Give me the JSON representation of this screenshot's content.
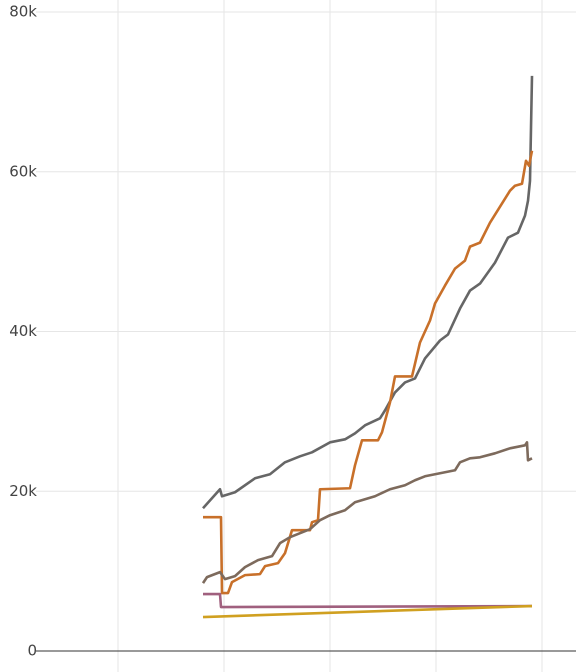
{
  "chart_data": {
    "type": "line",
    "xlim": [
      0,
      536
    ],
    "xticks": [
      78,
      184,
      290,
      396,
      502
    ],
    "ylim": [
      0,
      80000
    ],
    "yticks": [
      0,
      {
        "value": 20000,
        "label": "20k"
      },
      {
        "value": 40000,
        "label": "40k"
      },
      {
        "value": 60000,
        "label": "60k"
      },
      {
        "value": 80000,
        "label": "80k"
      }
    ],
    "grid": true,
    "series": [
      {
        "color": "#666666",
        "x": [
          163,
          180,
          182,
          195,
          215,
          230,
          245,
          260,
          272,
          290,
          305,
          315,
          325,
          340,
          345,
          355,
          365,
          375,
          385,
          400,
          408,
          420,
          430,
          440,
          455,
          468,
          478,
          485,
          488,
          490,
          492
        ],
        "values": [
          17875,
          20250,
          19375,
          19875,
          21625,
          22125,
          23625,
          24375,
          24875,
          26125,
          26500,
          27250,
          28250,
          29125,
          30125,
          32375,
          33625,
          34125,
          36625,
          38875,
          39625,
          42875,
          45125,
          46000,
          48625,
          51750,
          52375,
          54500,
          56375,
          58875,
          72000
        ]
      },
      {
        "color": "#c8702a",
        "x": [
          163,
          181,
          182,
          188,
          192,
          205,
          220,
          225,
          238,
          245,
          252,
          270,
          272,
          278,
          280,
          310,
          315,
          322,
          338,
          342,
          350,
          355,
          372,
          380,
          390,
          395,
          405,
          415,
          425,
          430,
          440,
          450,
          470,
          475,
          482,
          486,
          489,
          492
        ],
        "values": [
          16750,
          16750,
          7250,
          7250,
          8625,
          9500,
          9625,
          10625,
          11000,
          12250,
          15125,
          15125,
          16125,
          16375,
          20250,
          20375,
          23250,
          26375,
          26375,
          27375,
          31125,
          34375,
          34375,
          38625,
          41375,
          43500,
          45750,
          47875,
          48875,
          50625,
          51125,
          53625,
          57625,
          58250,
          58500,
          61375,
          60750,
          62625
        ]
      },
      {
        "color": "#7d6a5c",
        "x": [
          163,
          167,
          180,
          185,
          195,
          205,
          218,
          232,
          240,
          250,
          270,
          280,
          290,
          305,
          315,
          335,
          350,
          365,
          375,
          385,
          400,
          415,
          420,
          430,
          440,
          455,
          470,
          485,
          487,
          488,
          492
        ],
        "values": [
          8500,
          9250,
          9875,
          9000,
          9375,
          10500,
          11375,
          11875,
          13500,
          14250,
          15250,
          16375,
          17000,
          17625,
          18625,
          19375,
          20250,
          20750,
          21375,
          21875,
          22250,
          22625,
          23625,
          24125,
          24250,
          24750,
          25375,
          25750,
          26125,
          23875,
          24125
        ]
      },
      {
        "color": "#a0607e",
        "x": [
          163,
          180,
          181,
          492
        ],
        "values": [
          7125,
          7125,
          5500,
          5625
        ]
      },
      {
        "color": "#d0a020",
        "x": [
          163,
          492
        ],
        "values": [
          4250,
          5625
        ]
      }
    ]
  }
}
